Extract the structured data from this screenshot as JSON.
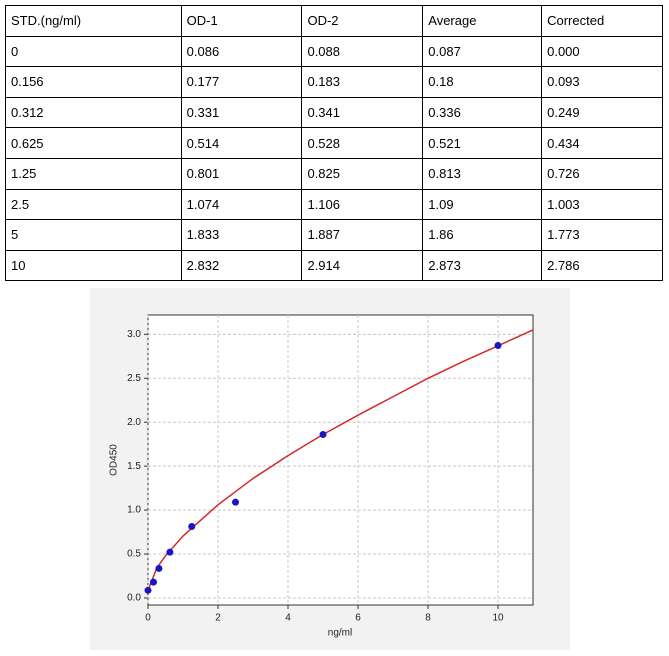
{
  "table": {
    "header": [
      "STD.(ng/ml)",
      "OD-1",
      "OD-2",
      "Average",
      "Corrected"
    ],
    "rows": [
      [
        "0",
        "0.086",
        "0.088",
        "0.087",
        "0.000"
      ],
      [
        "0.156",
        "0.177",
        "0.183",
        "0.18",
        "0.093"
      ],
      [
        "0.312",
        "0.331",
        "0.341",
        "0.336",
        "0.249"
      ],
      [
        "0.625",
        "0.514",
        "0.528",
        "0.521",
        "0.434"
      ],
      [
        "1.25",
        "0.801",
        "0.825",
        "0.813",
        "0.726"
      ],
      [
        "2.5",
        "1.074",
        "1.106",
        "1.09",
        "1.003"
      ],
      [
        "5",
        "1.833",
        "1.887",
        "1.86",
        "1.773"
      ],
      [
        "10",
        "2.832",
        "2.914",
        "2.873",
        "2.786"
      ]
    ]
  },
  "chart_data": {
    "type": "scatter",
    "xlabel": "ng/ml",
    "ylabel": "OD450",
    "xlim": [
      0,
      11
    ],
    "ylim": [
      -0.08,
      3.22
    ],
    "xticks": [
      0,
      2,
      4,
      6,
      8,
      10
    ],
    "yticks": [
      {
        "value": 0,
        "label": "0.0"
      },
      0.5,
      {
        "value": 1,
        "label": "1.0"
      },
      1.5,
      {
        "value": 2,
        "label": "2.0"
      },
      2.5,
      {
        "value": 3,
        "label": "3.0"
      }
    ],
    "grid": true,
    "series": [
      {
        "type": "scatter",
        "color": "#1a14c8",
        "x": [
          0,
          0.156,
          0.312,
          0.625,
          1.25,
          2.5,
          5,
          10
        ],
        "values": [
          0.087,
          0.18,
          0.336,
          0.521,
          0.813,
          1.09,
          1.86,
          2.873
        ]
      },
      {
        "type": "line",
        "color": "#d62728",
        "x": [
          0,
          0.25,
          0.5,
          1,
          2,
          3,
          4,
          5,
          6,
          7,
          8,
          9,
          10,
          11
        ],
        "values": [
          0.085,
          0.34,
          0.48,
          0.705,
          1.06,
          1.36,
          1.62,
          1.86,
          2.08,
          2.29,
          2.5,
          2.69,
          2.87,
          3.05
        ]
      }
    ]
  }
}
